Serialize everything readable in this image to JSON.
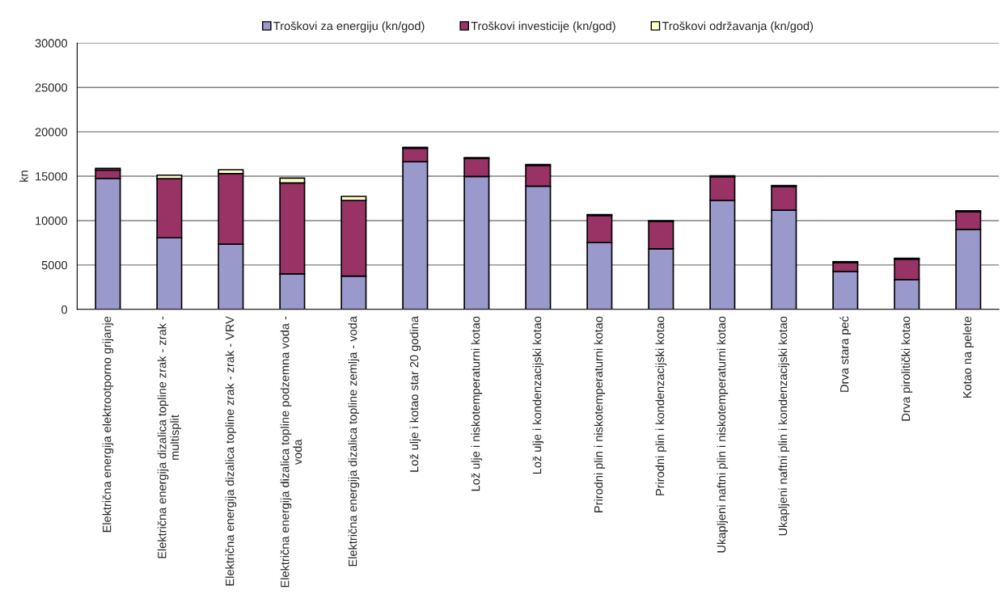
{
  "chart_data": {
    "type": "bar",
    "stacked": true,
    "ylabel": "kn",
    "categories": [
      "Električna energija elektrootporno grijanje",
      "Električna energija dizalica topline zrak - zrak -\nmultisplit",
      "Električna energija dizalica topline zrak - zrak - VRV",
      "Električna energija dizalica topline podzemna voda -\nvoda",
      "Električna energija dizalica topline zemlja - voda",
      "Lož ulje i kotao star 20 godina",
      "Lož ulje i niskotemperaturni kotao",
      "Lož ulje i kondenzacijski kotao",
      "Prirodni plin i niskotemperaturni kotao",
      "Prirodni plin i kondenzacijski kotao",
      "Ukapljeni naftni plin i niskotemperaturni kotao",
      "Ukapljeni naftni plin i kondenzacijski kotao",
      "Drva stara peć",
      "Drva pirolitički kotao",
      "Kotao na pelete"
    ],
    "series": [
      {
        "name": "Troškovi za energiju (kn/god)",
        "color": "#9999cc",
        "values": [
          14750,
          8060,
          7340,
          4000,
          3750,
          16640,
          14970,
          13880,
          7520,
          6820,
          12270,
          11180,
          4270,
          3340,
          9000
        ]
      },
      {
        "name": "Troškovi investicije (kn/god)",
        "color": "#993366",
        "values": [
          950,
          6670,
          7960,
          10240,
          8520,
          1510,
          2030,
          2330,
          3050,
          3060,
          2670,
          2670,
          1000,
          2320,
          2000
        ]
      },
      {
        "name": "Troškovi održavanja (kn/god)",
        "color": "#ffffcc",
        "values": [
          180,
          390,
          430,
          550,
          460,
          100,
          100,
          100,
          100,
          100,
          100,
          100,
          100,
          100,
          100
        ]
      }
    ],
    "ylim": [
      0,
      30000
    ],
    "yticks": [
      0,
      5000,
      10000,
      15000,
      20000,
      25000,
      30000
    ],
    "grid": "y",
    "legend": "top"
  }
}
